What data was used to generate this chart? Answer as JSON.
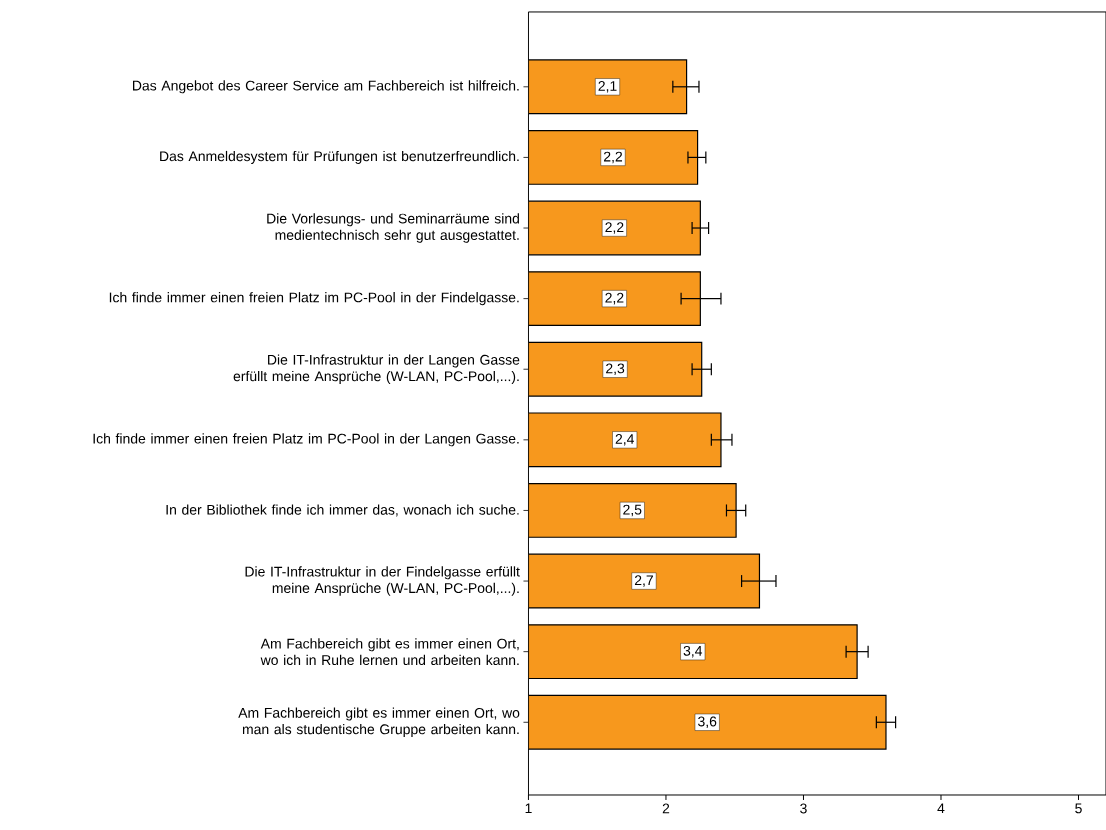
{
  "chart_data": {
    "type": "bar",
    "orientation": "horizontal",
    "categories": [
      "Das Angebot des Career Service am Fachbereich ist hilfreich.",
      "Das Anmeldesystem für Prüfungen ist benutzerfreundlich.",
      "Die Vorlesungs- und Seminarräume sind medientechnisch sehr gut ausgestattet.",
      "Ich finde immer einen freien Platz im PC-Pool in der Findelgasse.",
      "Die IT-Infrastruktur in der Langen Gasse erfüllt meine Ansprüche (W-LAN, PC-Pool,...).",
      "Ich finde immer einen freien Platz im PC-Pool in der Langen Gasse.",
      "In der Bibliothek finde ich immer das, wonach ich suche.",
      "Die IT-Infrastruktur in der Findelgasse erfüllt meine Ansprüche (W-LAN, PC-Pool,...).",
      "Am Fachbereich gibt es immer einen Ort, wo ich in Ruhe lernen und arbeiten kann.",
      "Am Fachbereich gibt es immer einen Ort, wo man als studentische Gruppe arbeiten kann."
    ],
    "values": [
      2.15,
      2.23,
      2.25,
      2.25,
      2.26,
      2.4,
      2.51,
      2.68,
      3.39,
      3.6
    ],
    "errors": [
      [
        2.05,
        2.24
      ],
      [
        2.16,
        2.29
      ],
      [
        2.19,
        2.31
      ],
      [
        2.11,
        2.4
      ],
      [
        2.19,
        2.33
      ],
      [
        2.33,
        2.48
      ],
      [
        2.44,
        2.58
      ],
      [
        2.55,
        2.8
      ],
      [
        3.31,
        3.47
      ],
      [
        3.53,
        3.67
      ]
    ],
    "value_labels": [
      "2,1",
      "2,2",
      "2,2",
      "2,2",
      "2,3",
      "2,4",
      "2,5",
      "2,7",
      "3,4",
      "3,6"
    ],
    "color": "#f7981d",
    "xlim": [
      1,
      5.2
    ],
    "xticks": [
      1,
      2,
      3,
      4,
      5
    ],
    "grid": false
  }
}
